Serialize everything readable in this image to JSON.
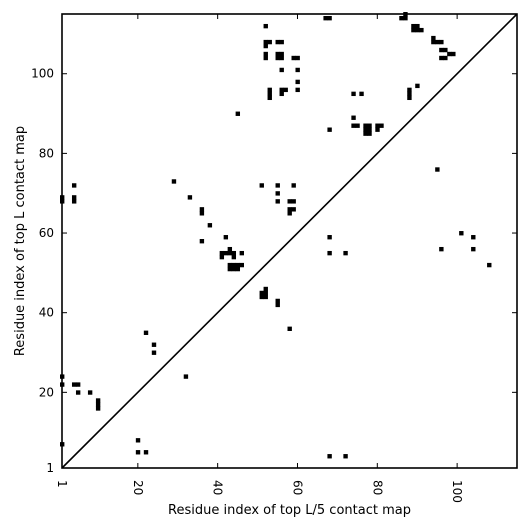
{
  "chart_data": {
    "type": "scatter",
    "title": "",
    "xlabel": "Residue index of top L/5 contact map",
    "ylabel": "Residue index of top L contact map",
    "xlim": [
      1,
      115
    ],
    "ylim": [
      1,
      115
    ],
    "xticks": [
      1,
      20,
      40,
      60,
      80,
      100
    ],
    "yticks": [
      1,
      20,
      40,
      60,
      80,
      100
    ],
    "xtick_labels": [
      "1",
      "20",
      "40",
      "60",
      "80",
      "100"
    ],
    "ytick_labels": [
      "1",
      "20",
      "40",
      "60",
      "80",
      "100"
    ],
    "diagonal": [
      [
        1,
        1
      ],
      [
        115,
        115
      ]
    ],
    "marker_color": "#000000",
    "grid": false,
    "points": [
      [
        1,
        68
      ],
      [
        1,
        69
      ],
      [
        4,
        72
      ],
      [
        4,
        68
      ],
      [
        4,
        69
      ],
      [
        1,
        24
      ],
      [
        1,
        22
      ],
      [
        4,
        22
      ],
      [
        5,
        22
      ],
      [
        5,
        20
      ],
      [
        8,
        20
      ],
      [
        10,
        18
      ],
      [
        10,
        17
      ],
      [
        10,
        16
      ],
      [
        1,
        7
      ],
      [
        20,
        8
      ],
      [
        20,
        5
      ],
      [
        22,
        5
      ],
      [
        22,
        35
      ],
      [
        24,
        32
      ],
      [
        24,
        30
      ],
      [
        32,
        24
      ],
      [
        29,
        73
      ],
      [
        33,
        69
      ],
      [
        36,
        66
      ],
      [
        36,
        65
      ],
      [
        36,
        58
      ],
      [
        38,
        62
      ],
      [
        42,
        59
      ],
      [
        41,
        55
      ],
      [
        41,
        54
      ],
      [
        42,
        55
      ],
      [
        43,
        55
      ],
      [
        43,
        56
      ],
      [
        44,
        55
      ],
      [
        44,
        54
      ],
      [
        43,
        52
      ],
      [
        43,
        51
      ],
      [
        44,
        52
      ],
      [
        44,
        51
      ],
      [
        45,
        52
      ],
      [
        45,
        51
      ],
      [
        46,
        52
      ],
      [
        46,
        55
      ],
      [
        45,
        90
      ],
      [
        51,
        72
      ],
      [
        51,
        45
      ],
      [
        51,
        44
      ],
      [
        52,
        45
      ],
      [
        52,
        44
      ],
      [
        52,
        46
      ],
      [
        55,
        43
      ],
      [
        55,
        42
      ],
      [
        58,
        36
      ],
      [
        52,
        112
      ],
      [
        52,
        108
      ],
      [
        52,
        107
      ],
      [
        53,
        108
      ],
      [
        52,
        105
      ],
      [
        52,
        104
      ],
      [
        53,
        96
      ],
      [
        53,
        95
      ],
      [
        53,
        94
      ],
      [
        55,
        108
      ],
      [
        56,
        108
      ],
      [
        55,
        105
      ],
      [
        55,
        104
      ],
      [
        56,
        105
      ],
      [
        56,
        104
      ],
      [
        56,
        101
      ],
      [
        56,
        96
      ],
      [
        56,
        95
      ],
      [
        57,
        96
      ],
      [
        59,
        104
      ],
      [
        60,
        104
      ],
      [
        60,
        101
      ],
      [
        60,
        98
      ],
      [
        60,
        96
      ],
      [
        55,
        72
      ],
      [
        55,
        70
      ],
      [
        55,
        68
      ],
      [
        58,
        68
      ],
      [
        59,
        68
      ],
      [
        58,
        66
      ],
      [
        59,
        66
      ],
      [
        58,
        65
      ],
      [
        59,
        72
      ],
      [
        67,
        114
      ],
      [
        68,
        114
      ],
      [
        68,
        86
      ],
      [
        68,
        59
      ],
      [
        68,
        55
      ],
      [
        72,
        55
      ],
      [
        68,
        4
      ],
      [
        72,
        4
      ],
      [
        74,
        95
      ],
      [
        76,
        95
      ],
      [
        74,
        89
      ],
      [
        74,
        87
      ],
      [
        75,
        87
      ],
      [
        77,
        87
      ],
      [
        78,
        87
      ],
      [
        77,
        86
      ],
      [
        78,
        86
      ],
      [
        77,
        85
      ],
      [
        78,
        85
      ],
      [
        80,
        87
      ],
      [
        81,
        87
      ],
      [
        80,
        86
      ],
      [
        86,
        114
      ],
      [
        87,
        114
      ],
      [
        87,
        115
      ],
      [
        89,
        112
      ],
      [
        90,
        112
      ],
      [
        89,
        111
      ],
      [
        90,
        111
      ],
      [
        91,
        111
      ],
      [
        88,
        96
      ],
      [
        88,
        95
      ],
      [
        88,
        94
      ],
      [
        90,
        97
      ],
      [
        94,
        109
      ],
      [
        95,
        108
      ],
      [
        94,
        108
      ],
      [
        96,
        108
      ],
      [
        96,
        106
      ],
      [
        97,
        106
      ],
      [
        96,
        104
      ],
      [
        97,
        104
      ],
      [
        98,
        105
      ],
      [
        99,
        105
      ],
      [
        95,
        76
      ],
      [
        96,
        56
      ],
      [
        101,
        60
      ],
      [
        104,
        59
      ],
      [
        104,
        56
      ],
      [
        108,
        52
      ]
    ]
  },
  "axes": {
    "xlabel": "Residue index of top L/5 contact map",
    "ylabel": "Residue index of top L contact map"
  }
}
